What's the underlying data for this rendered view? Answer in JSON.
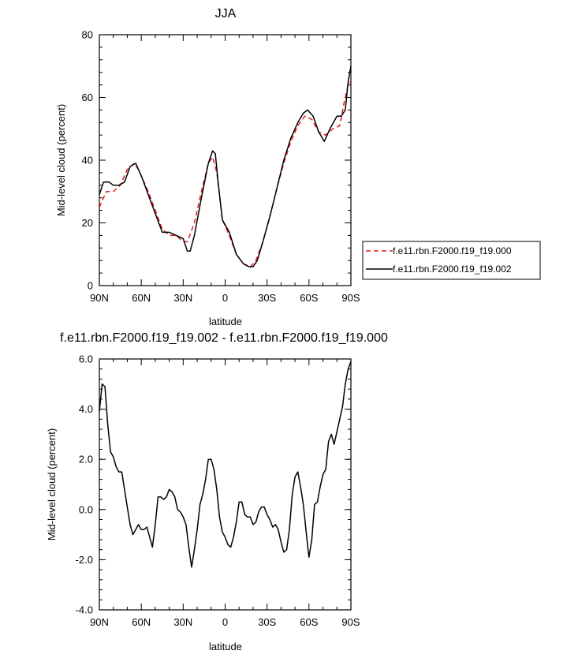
{
  "chart_data": [
    {
      "type": "line",
      "title": "JJA",
      "xlabel": "latitude",
      "ylabel": "Mid-level cloud (percent)",
      "xlim": [
        -90,
        90
      ],
      "ylim": [
        0,
        80
      ],
      "x_ticks": [
        {
          "value": -90,
          "label": "90N"
        },
        {
          "value": -60,
          "label": "60N"
        },
        {
          "value": -30,
          "label": "30N"
        },
        {
          "value": 0,
          "label": "0"
        },
        {
          "value": 30,
          "label": "30S"
        },
        {
          "value": 60,
          "label": "60S"
        },
        {
          "value": 90,
          "label": "90S"
        }
      ],
      "y_ticks": [
        {
          "value": 0,
          "label": "0"
        },
        {
          "value": 20,
          "label": "20"
        },
        {
          "value": 40,
          "label": "40"
        },
        {
          "value": 60,
          "label": "60"
        },
        {
          "value": 80,
          "label": "80"
        }
      ],
      "legend_position": "right",
      "series": [
        {
          "name": "f.e11.rbn.F2000.f19_f19.000",
          "color": "#e8191d",
          "dash": "dashed",
          "x": [
            -90,
            -85,
            -80,
            -75,
            -70,
            -65,
            -62,
            -55,
            -50,
            -45,
            -40,
            -35,
            -30,
            -27,
            -22,
            -17,
            -12,
            -9,
            -6,
            -2,
            3,
            8,
            13,
            18,
            22,
            27,
            32,
            37,
            42,
            47,
            52,
            57,
            62,
            67,
            72,
            77,
            82,
            85,
            88,
            90
          ],
          "y": [
            25,
            30,
            30,
            32,
            37,
            39,
            37,
            30,
            24,
            18,
            16,
            16,
            14,
            14,
            20,
            30,
            39,
            41,
            36,
            21,
            16,
            10,
            7,
            6,
            8,
            14,
            22,
            31,
            39,
            46,
            51,
            54,
            53,
            49,
            48,
            50,
            51,
            58,
            64,
            65
          ]
        },
        {
          "name": "f.e11.rbn.F2000.f19_f19.002",
          "color": "#000000",
          "dash": "solid",
          "x": [
            -90,
            -87,
            -83,
            -80,
            -76,
            -72,
            -68,
            -64,
            -60,
            -55,
            -50,
            -45,
            -40,
            -35,
            -30,
            -27,
            -25,
            -22,
            -17,
            -12,
            -9,
            -7,
            -5,
            -2,
            3,
            8,
            13,
            17,
            20,
            23,
            27,
            32,
            37,
            42,
            47,
            52,
            56,
            59,
            63,
            67,
            71,
            75,
            80,
            83,
            86,
            88,
            90
          ],
          "y": [
            29,
            33,
            33,
            32,
            32,
            33,
            38,
            39,
            35,
            29,
            23,
            17,
            17,
            16,
            15,
            11,
            11,
            16,
            28,
            39,
            43,
            42,
            33,
            21,
            17,
            10,
            7,
            6,
            6,
            8,
            14,
            22,
            31,
            40,
            47,
            52,
            55,
            56,
            54,
            49,
            46,
            50,
            54,
            54,
            56,
            65,
            70
          ]
        }
      ]
    },
    {
      "type": "line",
      "title": "f.e11.rbn.F2000.f19_f19.002 - f.e11.rbn.F2000.f19_f19.000",
      "xlabel": "latitude",
      "ylabel": "Mid-level cloud (percent)",
      "xlim": [
        -90,
        90
      ],
      "ylim": [
        -4.0,
        6.0
      ],
      "x_ticks": [
        {
          "value": -90,
          "label": "90N"
        },
        {
          "value": -60,
          "label": "60N"
        },
        {
          "value": -30,
          "label": "30N"
        },
        {
          "value": 0,
          "label": "0"
        },
        {
          "value": 30,
          "label": "30S"
        },
        {
          "value": 60,
          "label": "60S"
        },
        {
          "value": 90,
          "label": "90S"
        }
      ],
      "y_ticks": [
        {
          "value": -4.0,
          "label": "-4.0"
        },
        {
          "value": -2.0,
          "label": "-2.0"
        },
        {
          "value": 0.0,
          "label": "0.0"
        },
        {
          "value": 2.0,
          "label": "2.0"
        },
        {
          "value": 4.0,
          "label": "4.0"
        },
        {
          "value": 6.0,
          "label": "6.0"
        }
      ],
      "series": [
        {
          "color": "#000000",
          "dash": "solid",
          "x": [
            -90,
            -88,
            -86,
            -84,
            -82,
            -80,
            -78,
            -76,
            -74,
            -72,
            -70,
            -68,
            -66,
            -64,
            -62,
            -60,
            -58,
            -56,
            -54,
            -52,
            -50,
            -48,
            -46,
            -44,
            -42,
            -40,
            -38,
            -36,
            -34,
            -32,
            -30,
            -28,
            -26,
            -24,
            -22,
            -20,
            -18,
            -16,
            -14,
            -12,
            -10,
            -8,
            -6,
            -4,
            -2,
            0,
            2,
            4,
            6,
            8,
            10,
            12,
            14,
            16,
            18,
            20,
            22,
            24,
            26,
            28,
            30,
            32,
            34,
            36,
            38,
            40,
            42,
            44,
            46,
            48,
            50,
            52,
            54,
            56,
            58,
            60,
            62,
            64,
            66,
            68,
            70,
            72,
            74,
            76,
            78,
            80,
            82,
            84,
            86,
            88,
            90
          ],
          "y": [
            3.9,
            5.0,
            4.9,
            3.4,
            2.3,
            2.1,
            1.7,
            1.5,
            1.5,
            0.8,
            0.1,
            -0.6,
            -1.0,
            -0.8,
            -0.6,
            -0.8,
            -0.8,
            -0.7,
            -1.1,
            -1.5,
            -0.6,
            0.5,
            0.5,
            0.4,
            0.5,
            0.8,
            0.7,
            0.5,
            0.0,
            -0.1,
            -0.3,
            -0.6,
            -1.5,
            -2.3,
            -1.6,
            -0.8,
            0.2,
            0.6,
            1.2,
            2.0,
            2.0,
            1.6,
            0.8,
            -0.3,
            -0.9,
            -1.1,
            -1.4,
            -1.5,
            -1.1,
            -0.5,
            0.3,
            0.3,
            -0.2,
            -0.3,
            -0.3,
            -0.6,
            -0.5,
            -0.1,
            0.1,
            0.1,
            -0.2,
            -0.4,
            -0.7,
            -0.6,
            -0.8,
            -1.3,
            -1.7,
            -1.6,
            -0.8,
            0.6,
            1.3,
            1.5,
            0.9,
            0.2,
            -0.9,
            -1.9,
            -1.2,
            0.2,
            0.3,
            0.9,
            1.4,
            1.6,
            2.7,
            3.0,
            2.6,
            3.1,
            3.6,
            4.1,
            5.0,
            5.6,
            5.9
          ]
        }
      ]
    }
  ]
}
